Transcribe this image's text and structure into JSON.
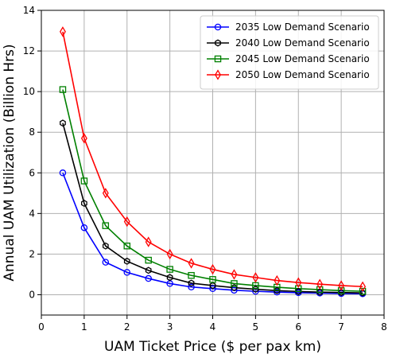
{
  "chart_data": {
    "type": "line",
    "title": "",
    "xlabel": "UAM Ticket Price ($ per pax km)",
    "ylabel": "Annual UAM Utilization (Billion Hrs)",
    "xlim": [
      0,
      8
    ],
    "ylim": [
      -1,
      14
    ],
    "x_ticks": [
      0,
      1,
      2,
      3,
      4,
      5,
      6,
      7,
      8
    ],
    "y_ticks": [
      0,
      2,
      4,
      6,
      8,
      10,
      12,
      14
    ],
    "grid": true,
    "legend_position": "top-right",
    "x": [
      0.5,
      1.0,
      1.5,
      2.0,
      2.5,
      3.0,
      3.5,
      4.0,
      4.5,
      5.0,
      5.5,
      6.0,
      6.5,
      7.0,
      7.5
    ],
    "series": [
      {
        "name": "2035 Low Demand Scenario",
        "color": "#0000ff",
        "marker": "circle",
        "values": [
          6.0,
          3.3,
          1.6,
          1.1,
          0.8,
          0.55,
          0.38,
          0.3,
          0.22,
          0.17,
          0.13,
          0.1,
          0.08,
          0.06,
          0.05
        ]
      },
      {
        "name": "2040 Low  Demand Scenario",
        "color": "#000000",
        "marker": "hexagon",
        "values": [
          8.45,
          4.5,
          2.4,
          1.65,
          1.2,
          0.85,
          0.57,
          0.45,
          0.35,
          0.27,
          0.2,
          0.16,
          0.13,
          0.11,
          0.09
        ]
      },
      {
        "name": "2045 Low  Demand Scenario",
        "color": "#008000",
        "marker": "square",
        "values": [
          10.1,
          5.6,
          3.4,
          2.4,
          1.7,
          1.25,
          0.95,
          0.75,
          0.55,
          0.45,
          0.37,
          0.3,
          0.25,
          0.2,
          0.17
        ]
      },
      {
        "name": "2050 Low  Demand Scenario",
        "color": "#ff0000",
        "marker": "thin-diamond",
        "values": [
          12.95,
          7.7,
          5.0,
          3.6,
          2.6,
          2.0,
          1.55,
          1.25,
          1.0,
          0.85,
          0.7,
          0.6,
          0.52,
          0.45,
          0.4
        ]
      }
    ]
  }
}
